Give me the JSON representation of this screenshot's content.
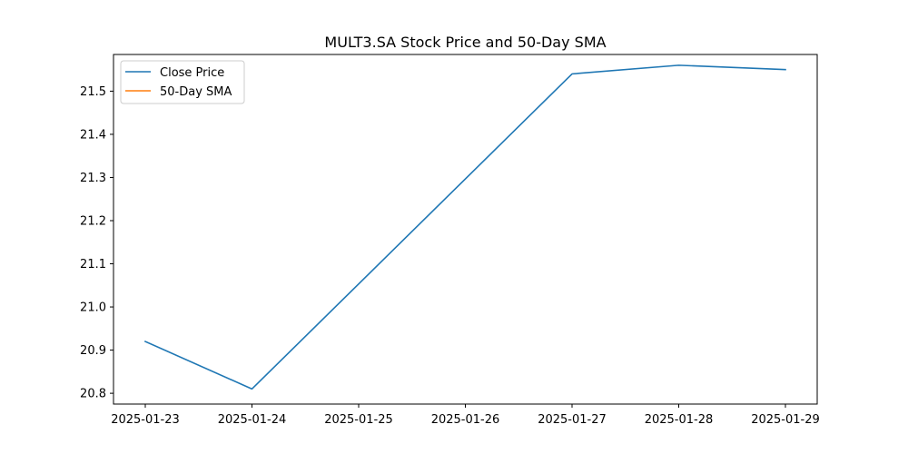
{
  "chart_data": {
    "type": "line",
    "title": "MULT3.SA Stock Price and 50-Day SMA",
    "xlabel": "",
    "ylabel": "",
    "x": [
      "2025-01-23",
      "2025-01-24",
      "2025-01-25",
      "2025-01-26",
      "2025-01-27",
      "2025-01-28",
      "2025-01-29"
    ],
    "x_ticks": [
      "2025-01-23",
      "2025-01-24",
      "2025-01-25",
      "2025-01-26",
      "2025-01-27",
      "2025-01-28",
      "2025-01-29"
    ],
    "y_ticks": [
      "20.8",
      "20.9",
      "21.0",
      "21.1",
      "21.2",
      "21.3",
      "21.4",
      "21.5"
    ],
    "ylim": [
      20.775,
      21.585
    ],
    "legend_position": "top-left",
    "grid": false,
    "series": [
      {
        "name": "Close Price",
        "color": "#1f77b4",
        "points": [
          {
            "x": "2025-01-23",
            "y": 20.92
          },
          {
            "x": "2025-01-24",
            "y": 20.81
          },
          {
            "x": "2025-01-27",
            "y": 21.54
          },
          {
            "x": "2025-01-28",
            "y": 21.56
          },
          {
            "x": "2025-01-29",
            "y": 21.55
          }
        ]
      },
      {
        "name": "50-Day SMA",
        "color": "#ff7f0e",
        "points": []
      }
    ]
  }
}
